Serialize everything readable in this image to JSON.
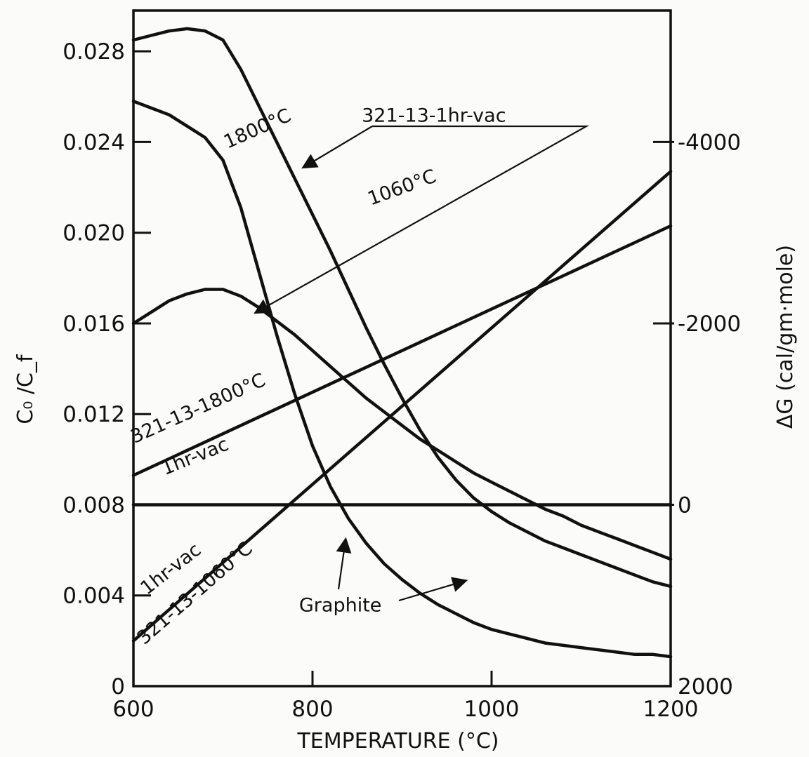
{
  "chart_data": {
    "type": "line",
    "title": "",
    "xlabel": "TEMPERATURE (°C)",
    "ylabel": "C₀ /C_f",
    "y2label": "ΔG (cal/gm·mole)",
    "xlim": [
      600,
      1200
    ],
    "ylim": [
      0,
      0.0298
    ],
    "x_ticks": [
      600,
      800,
      1000,
      1200
    ],
    "x_tick_labels": [
      "600",
      "800",
      "1000",
      "1200"
    ],
    "y_ticks": [
      0,
      0.004,
      0.008,
      0.012,
      0.016,
      0.02,
      0.024,
      0.028
    ],
    "y_tick_labels": [
      "0",
      "0.004",
      "0.008",
      "0.012",
      "0.016",
      "0.020",
      "0.024",
      "0.028"
    ],
    "y2_ticks": [
      -4000,
      -2000,
      0,
      2000
    ],
    "y2_tick_labels": [
      "-4000",
      "-2000",
      "0",
      "2000"
    ],
    "y2_tick_positions": [
      0.024,
      0.016,
      0.008,
      0.0
    ],
    "grid": false,
    "series": [
      {
        "x": [
          600,
          620,
          640,
          660,
          680,
          700,
          720,
          740,
          760,
          780,
          800,
          820,
          840,
          860,
          880,
          900,
          920,
          940,
          960,
          980,
          1000,
          1020,
          1040,
          1060,
          1080,
          1100,
          1120,
          1140,
          1160,
          1180,
          1200
        ],
        "y": [
          0.0285,
          0.0287,
          0.0289,
          0.029,
          0.0289,
          0.0285,
          0.0272,
          0.0256,
          0.024,
          0.0224,
          0.0208,
          0.0192,
          0.0175,
          0.0158,
          0.0142,
          0.0127,
          0.0113,
          0.0101,
          0.0091,
          0.0083,
          0.0077,
          0.0072,
          0.0068,
          0.0064,
          0.0061,
          0.0058,
          0.0055,
          0.0052,
          0.0049,
          0.0046,
          0.0044
        ]
      },
      {
        "x": [
          600,
          620,
          640,
          660,
          680,
          700,
          720,
          740,
          760,
          780,
          800,
          820,
          840,
          860,
          880,
          900,
          920,
          940,
          960,
          980,
          1000,
          1020,
          1040,
          1060,
          1080,
          1100,
          1120,
          1140,
          1160,
          1180,
          1200
        ],
        "y": [
          0.0258,
          0.0255,
          0.0252,
          0.0247,
          0.0242,
          0.0232,
          0.0211,
          0.0183,
          0.0155,
          0.0129,
          0.0106,
          0.0088,
          0.0074,
          0.0063,
          0.0054,
          0.0047,
          0.0041,
          0.0036,
          0.0032,
          0.0028,
          0.0025,
          0.0023,
          0.0021,
          0.0019,
          0.0018,
          0.0017,
          0.0016,
          0.0015,
          0.0014,
          0.0014,
          0.0013
        ]
      },
      {
        "x": [
          600,
          620,
          640,
          660,
          680,
          700,
          720,
          740,
          760,
          780,
          800,
          820,
          840,
          860,
          880,
          900,
          920,
          940,
          960,
          980,
          1000,
          1020,
          1040,
          1060,
          1080,
          1100,
          1120,
          1140,
          1160,
          1180,
          1200
        ],
        "y": [
          0.016,
          0.0165,
          0.017,
          0.0173,
          0.0175,
          0.0175,
          0.0172,
          0.0167,
          0.0161,
          0.0155,
          0.0148,
          0.0141,
          0.0134,
          0.0127,
          0.0121,
          0.0115,
          0.0109,
          0.0104,
          0.0099,
          0.0094,
          0.009,
          0.0086,
          0.0082,
          0.0078,
          0.0075,
          0.0071,
          0.0068,
          0.0065,
          0.0062,
          0.0059,
          0.0056
        ]
      },
      {
        "x": [
          600,
          1200
        ],
        "y": [
          0.0093,
          0.0203
        ]
      },
      {
        "x": [
          600,
          1200
        ],
        "y": [
          0.002,
          0.0227
        ]
      },
      {
        "x": [
          600,
          1200
        ],
        "y": [
          0.008,
          0.008
        ]
      }
    ],
    "annotations": [
      {
        "text": "1800°C",
        "x": 705,
        "y": 0.0237,
        "rotate": -24
      },
      {
        "text": "321-13-1hr-vac",
        "x": 855,
        "y": 0.0249,
        "rotate": 0
      },
      {
        "text": "1060°C",
        "x": 865,
        "y": 0.0212,
        "rotate": -20
      },
      {
        "text": "321-13-1800°C",
        "x": 601,
        "y": 0.0107,
        "rotate": -24
      },
      {
        "text": "1hr-vac",
        "x": 635,
        "y": 0.0093,
        "rotate": -22
      },
      {
        "text": "1hr-vac",
        "x": 615,
        "y": 0.004,
        "rotate": -38
      },
      {
        "text": "321-13-1060°C",
        "x": 612,
        "y": 0.0018,
        "rotate": -41
      },
      {
        "text": "Graphite",
        "x": 785,
        "y": 0.0033,
        "rotate": 0
      }
    ]
  }
}
